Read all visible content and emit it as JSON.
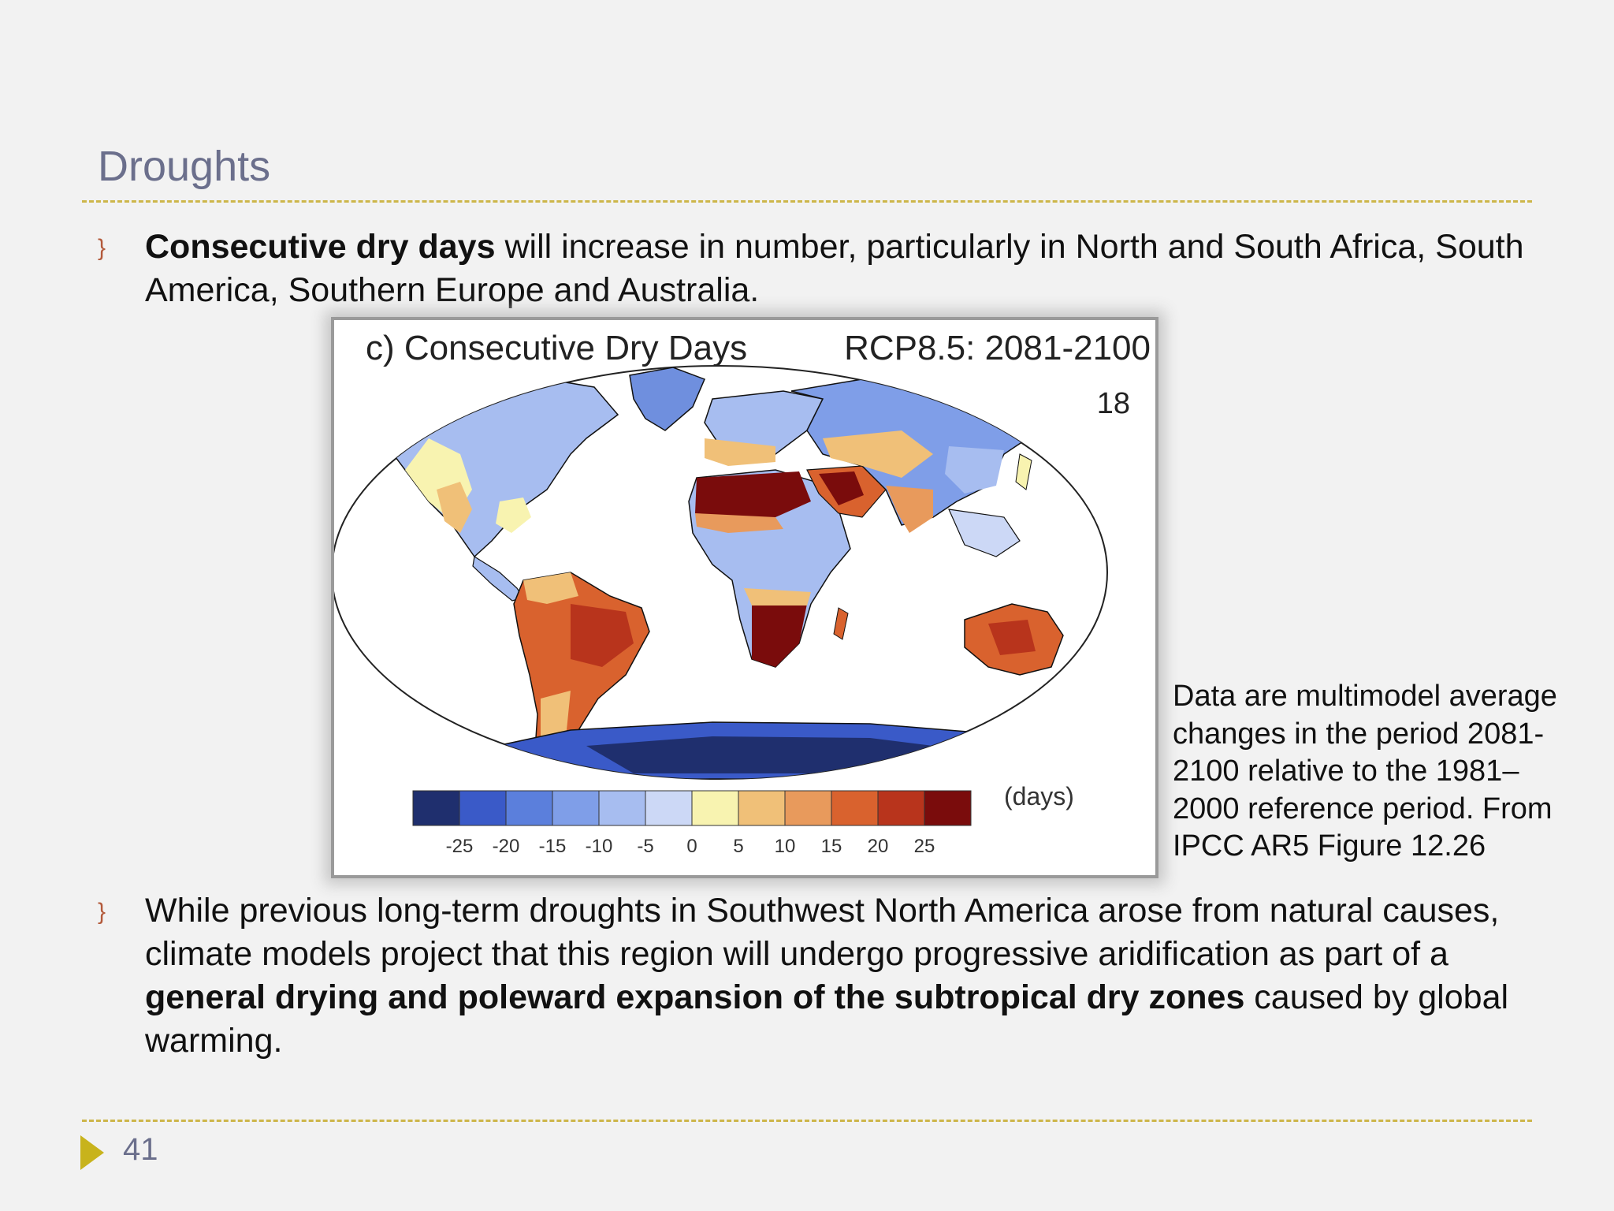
{
  "slide": {
    "title": "Droughts",
    "page_number": "41"
  },
  "bullets": [
    {
      "marker": "}",
      "runs": [
        {
          "bold": true,
          "text": "Consecutive dry days"
        },
        {
          "bold": false,
          "text": " will increase in number,  particularly in North and South Africa, South America, Southern Europe and Australia."
        }
      ]
    },
    {
      "marker": "}",
      "runs": [
        {
          "bold": false,
          "text": "While previous long-term droughts in Southwest North America arose from natural causes, climate models project that this region will undergo progressive aridification as part of a "
        },
        {
          "bold": true,
          "text": "general drying and poleward expansion of the subtropical dry zones"
        },
        {
          "bold": false,
          "text": " caused by global warming."
        }
      ]
    }
  ],
  "figure": {
    "title": "c) Consecutive Dry Days",
    "scenario": "RCP8.5: 2081-2100",
    "model_count": "18",
    "colorbar_unit": "(days)",
    "colorbar_ticks": [
      "-25",
      "-20",
      "-15",
      "-10",
      "-5",
      "0",
      "5",
      "10",
      "15",
      "20",
      "25"
    ],
    "colorbar_colors": [
      "#1f2f6e",
      "#3a5ac8",
      "#5b7fdc",
      "#7f9ee8",
      "#a7bdf0",
      "#ccd8f6",
      "#f8f3b0",
      "#f0c078",
      "#e89a5c",
      "#d9622e",
      "#b8341c",
      "#7a0c0c"
    ]
  },
  "caption": "Data are multimodel average changes  in the period 2081-2100 relative to the 1981–2000 reference period. From IPCC AR5 Figure 12.26"
}
